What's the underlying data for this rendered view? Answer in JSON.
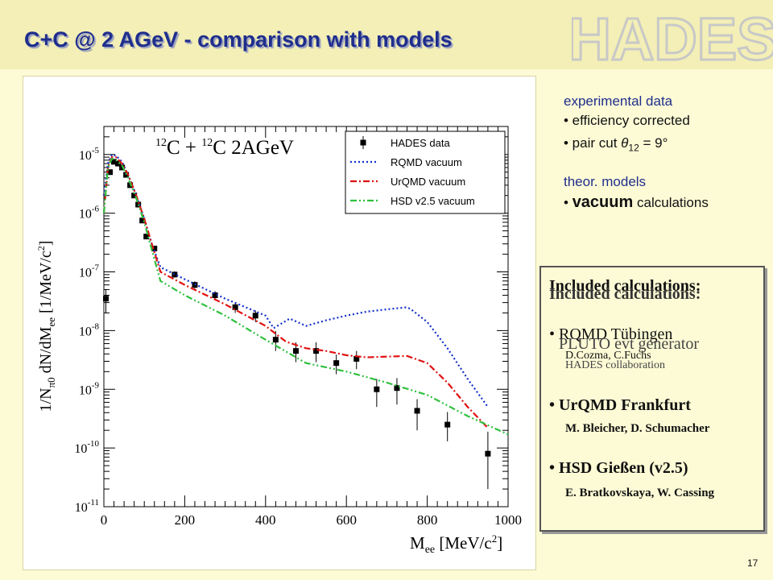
{
  "slide": {
    "title": "C+C @ 2 AGeV - comparison with models",
    "logo_text": "HADES",
    "page_number": "17"
  },
  "info": {
    "exp_head": "experimental data",
    "exp_item1": "• efficiency corrected",
    "exp_item2_prefix": "• pair cut ",
    "exp_item2_theta": "θ",
    "exp_item2_sub": "12",
    "exp_item2_suffix": " = 9°",
    "theor_head": "theor. models",
    "theor_bullet": "• ",
    "theor_bold": "vacuum",
    "theor_rest": " calculations"
  },
  "calc_box": {
    "heading": "Included calculations:",
    "items": [
      {
        "name": "RQMD Tübingen",
        "authors": "D.Cozma, C.Fuchs"
      },
      {
        "name": "UrQMD Frankfurt",
        "authors": "M. Bleicher, D. Schumacher"
      },
      {
        "name": "HSD Gießen (v2.5)",
        "authors": "E. Bratkovskaya,  W. Cassing"
      }
    ],
    "overlay_item": "PLUTO evt generator",
    "overlay_authors": "HADES collaboration"
  },
  "chart_data": {
    "type": "line",
    "reaction_label": "12C + 12C   2AGeV",
    "xlabel": "Mee   [MeV/c2]",
    "ylabel": "1/Nπ0 dN/dMee   [1/MeV/c2]",
    "xlim": [
      0,
      1000
    ],
    "ylim": [
      1e-11,
      3e-05
    ],
    "yscale": "log",
    "x_ticks": [
      0,
      200,
      400,
      600,
      800,
      1000
    ],
    "y_ticks": [
      "10-11",
      "10-10",
      "10-9",
      "10-8",
      "10-7",
      "10-6",
      "10-5"
    ],
    "legend_position": "top-right",
    "series": [
      {
        "name": "HADES data",
        "style": "markers",
        "color": "#000000",
        "x": [
          5,
          15,
          25,
          35,
          45,
          55,
          65,
          75,
          85,
          95,
          105,
          125,
          175,
          225,
          275,
          325,
          375,
          425,
          475,
          525,
          575,
          625,
          675,
          725,
          775,
          850,
          950
        ],
        "y": [
          3.5e-08,
          5e-06,
          7.5e-06,
          7e-06,
          6e-06,
          4.5e-06,
          3e-06,
          2e-06,
          1.4e-06,
          7.5e-07,
          4e-07,
          2.5e-07,
          9e-08,
          6e-08,
          4e-08,
          2.5e-08,
          1.8e-08,
          7e-09,
          4.5e-09,
          4.5e-09,
          2.8e-09,
          3.3e-09,
          1e-09,
          1.05e-09,
          4.3e-10,
          2.5e-10,
          8e-11
        ],
        "err_lo": [
          1.5e-08,
          5e-07,
          6e-07,
          5e-07,
          4e-07,
          3e-07,
          2e-07,
          1.5e-07,
          1e-07,
          6e-08,
          4e-08,
          2.5e-08,
          1e-08,
          8e-09,
          6e-09,
          5e-09,
          4e-09,
          2.5e-09,
          1.6e-09,
          1.6e-09,
          1e-09,
          1.1e-09,
          5e-10,
          5e-10,
          2.3e-10,
          1.2e-10,
          6e-11
        ],
        "err_hi": [
          1.5e-08,
          5e-07,
          6e-07,
          5e-07,
          4e-07,
          3e-07,
          2e-07,
          1.5e-07,
          1e-07,
          6e-08,
          4e-08,
          2.5e-08,
          1.2e-08,
          9e-09,
          7e-09,
          5e-09,
          4e-09,
          2.8e-09,
          1.8e-09,
          1.8e-09,
          1.1e-09,
          1.2e-09,
          5e-10,
          5e-10,
          2.5e-10,
          1.6e-10,
          1.1e-10
        ]
      },
      {
        "name": "RQMD vacuum",
        "style": "dotted",
        "color": "#1230c8",
        "x": [
          0,
          10,
          20,
          30,
          45,
          60,
          80,
          100,
          120,
          140,
          200,
          300,
          400,
          420,
          460,
          500,
          550,
          600,
          650,
          700,
          750,
          760,
          800,
          850,
          900,
          950
        ],
        "y": [
          2e-06,
          7e-06,
          1e-05,
          9.5e-06,
          7.5e-06,
          4.5e-06,
          2e-06,
          8e-07,
          2.8e-07,
          1.2e-07,
          7.5e-08,
          3.5e-08,
          1.8e-08,
          1.1e-08,
          1.6e-08,
          1.2e-08,
          1.5e-08,
          1.8e-08,
          2.1e-08,
          2.3e-08,
          2.5e-08,
          2.3e-08,
          1.4e-08,
          5e-09,
          1.5e-09,
          5e-10
        ]
      },
      {
        "name": "UrQMD vacuum",
        "style": "dash-dot",
        "color": "#e01010",
        "x": [
          0,
          10,
          20,
          30,
          45,
          60,
          80,
          100,
          120,
          140,
          200,
          300,
          400,
          450,
          500,
          550,
          600,
          650,
          700,
          750,
          800,
          850,
          900,
          950
        ],
        "y": [
          1e-06,
          6e-06,
          9e-06,
          9e-06,
          7e-06,
          4.5e-06,
          2e-06,
          8e-07,
          2.8e-07,
          1e-07,
          6e-08,
          2.8e-08,
          1.2e-08,
          6.5e-09,
          5e-09,
          4.5e-09,
          3.8e-09,
          3.5e-09,
          3.6e-09,
          3.7e-09,
          2.8e-09,
          1.3e-09,
          5e-10,
          2.2e-10
        ]
      },
      {
        "name": "HSD v2.5 vacuum",
        "style": "dash-dot-dot",
        "color": "#30c040",
        "x": [
          0,
          10,
          20,
          30,
          45,
          60,
          80,
          100,
          120,
          140,
          200,
          300,
          400,
          500,
          600,
          700,
          800,
          900,
          1000
        ],
        "y": [
          1e-06,
          6e-06,
          8.5e-06,
          8e-06,
          6.5e-06,
          4e-06,
          1.8e-06,
          7e-07,
          2.2e-07,
          7e-08,
          4e-08,
          1.8e-08,
          7e-09,
          2.8e-09,
          2e-09,
          1.3e-09,
          8e-10,
          3.5e-10,
          1.7e-10
        ]
      }
    ]
  }
}
